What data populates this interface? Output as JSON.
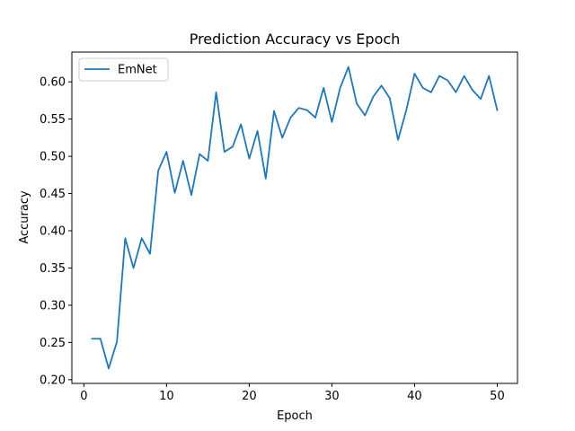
{
  "chart_data": {
    "type": "line",
    "title": "Prediction Accuracy vs Epoch",
    "xlabel": "Epoch",
    "ylabel": "Accuracy",
    "xlim": [
      -1.45,
      52.45
    ],
    "ylim": [
      0.195,
      0.64
    ],
    "xticks": [
      0,
      10,
      20,
      30,
      40,
      50
    ],
    "yticks": [
      0.2,
      0.25,
      0.3,
      0.35,
      0.4,
      0.45,
      0.5,
      0.55,
      0.6
    ],
    "ytick_labels": [
      "0.20",
      "0.25",
      "0.30",
      "0.35",
      "0.40",
      "0.45",
      "0.50",
      "0.55",
      "0.60"
    ],
    "grid": false,
    "legend": {
      "position": "top-left",
      "entries": [
        "EmNet"
      ]
    },
    "series": [
      {
        "name": "EmNet",
        "color": "#1f77b4",
        "x": [
          1,
          2,
          3,
          4,
          5,
          6,
          7,
          8,
          9,
          10,
          11,
          12,
          13,
          14,
          15,
          16,
          17,
          18,
          19,
          20,
          21,
          22,
          23,
          24,
          25,
          26,
          27,
          28,
          29,
          30,
          31,
          32,
          33,
          34,
          35,
          36,
          37,
          38,
          39,
          40,
          41,
          42,
          43,
          44,
          45,
          46,
          47,
          48,
          49,
          50
        ],
        "y": [
          0.255,
          0.255,
          0.215,
          0.251,
          0.39,
          0.35,
          0.39,
          0.369,
          0.481,
          0.506,
          0.451,
          0.494,
          0.448,
          0.503,
          0.494,
          0.586,
          0.506,
          0.513,
          0.543,
          0.497,
          0.534,
          0.47,
          0.561,
          0.525,
          0.552,
          0.565,
          0.562,
          0.552,
          0.592,
          0.546,
          0.592,
          0.62,
          0.571,
          0.555,
          0.58,
          0.595,
          0.578,
          0.522,
          0.562,
          0.611,
          0.592,
          0.586,
          0.608,
          0.602,
          0.586,
          0.608,
          0.589,
          0.577,
          0.608,
          0.562
        ]
      }
    ]
  }
}
